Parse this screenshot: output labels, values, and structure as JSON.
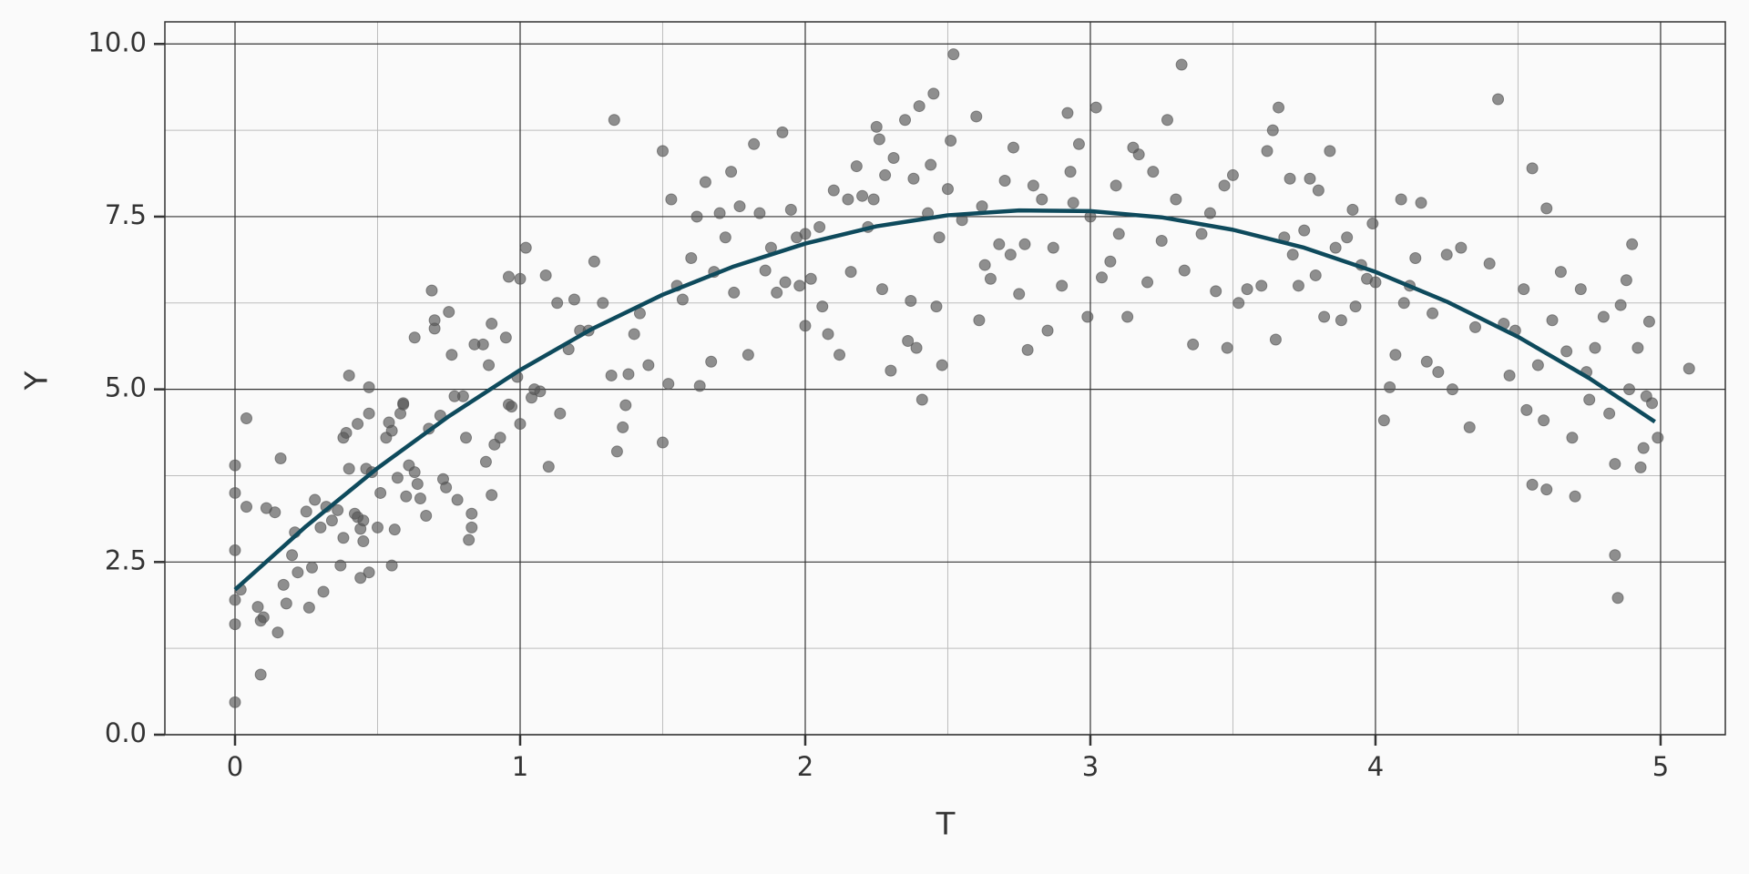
{
  "chart_data": {
    "type": "scatter",
    "xlabel": "T",
    "ylabel": "Y",
    "xlim": [
      -0.246,
      5.227
    ],
    "ylim": [
      0,
      10.32
    ],
    "xticks": [
      0,
      1,
      2,
      3,
      4,
      5
    ],
    "yticks": [
      {
        "value": 0,
        "label": "0.0"
      },
      {
        "value": 2.5,
        "label": "2.5"
      },
      {
        "value": 5,
        "label": "5.0"
      },
      {
        "value": 7.5,
        "label": "7.5"
      },
      {
        "value": 10,
        "label": "10.0"
      }
    ],
    "minor_xticks": [
      0.5,
      1.5,
      2.5,
      3.5,
      4.5
    ],
    "minor_yticks": [
      1.25,
      3.75,
      6.25,
      8.75
    ],
    "grid": true,
    "series": [
      {
        "type": "scatter",
        "color": "#555555",
        "alpha": 0.65,
        "x": [
          0,
          0,
          0,
          0,
          0,
          0,
          0.04,
          0.04,
          0.02,
          0.08,
          0.09,
          0.1,
          0.09,
          0.11,
          0.14,
          0.15,
          0.16,
          0.17,
          0.18,
          0.2,
          0.21,
          0.22,
          0.25,
          0.26,
          0.27,
          0.28,
          0.3,
          0.31,
          0.32,
          0.34,
          0.36,
          0.37,
          0.38,
          0.38,
          0.39,
          0.4,
          0.4,
          0.42,
          0.43,
          0.43,
          0.44,
          0.44,
          0.45,
          0.45,
          0.46,
          0.47,
          0.47,
          0.48,
          0.47,
          0.5,
          0.51,
          0.53,
          0.54,
          0.55,
          0.55,
          0.56,
          0.57,
          0.58,
          0.59,
          0.59,
          0.6,
          0.61,
          0.63,
          0.63,
          0.64,
          0.65,
          0.67,
          0.68,
          0.69,
          0.7,
          0.7,
          0.72,
          0.73,
          0.74,
          0.75,
          0.76,
          0.77,
          0.78,
          0.8,
          0.81,
          0.82,
          0.83,
          0.83,
          0.84,
          0.87,
          0.88,
          0.89,
          0.9,
          0.9,
          0.91,
          0.93,
          0.95,
          0.96,
          0.96,
          0.97,
          0.99,
          1.0,
          1.0,
          1.02,
          1.04,
          1.05,
          1.07,
          1.09,
          1.1,
          1.13,
          1.14,
          1.17,
          1.19,
          1.21,
          1.24,
          1.26,
          1.29,
          1.32,
          1.33,
          1.34,
          1.36,
          1.37,
          1.38,
          1.4,
          1.42,
          1.45,
          1.5,
          1.5,
          1.52,
          1.53,
          1.55,
          1.57,
          1.6,
          1.62,
          1.63,
          1.65,
          1.67,
          1.68,
          1.7,
          1.72,
          1.74,
          1.75,
          1.77,
          1.8,
          1.82,
          1.84,
          1.86,
          1.88,
          1.9,
          1.92,
          1.93,
          1.95,
          1.97,
          1.98,
          2.0,
          2.0,
          2.02,
          2.05,
          2.06,
          2.08,
          2.1,
          2.12,
          2.15,
          2.16,
          2.18,
          2.2,
          2.22,
          2.24,
          2.25,
          2.26,
          2.27,
          2.28,
          2.3,
          2.31,
          2.35,
          2.36,
          2.37,
          2.38,
          2.39,
          2.4,
          2.41,
          2.43,
          2.44,
          2.45,
          2.46,
          2.47,
          2.48,
          2.5,
          2.51,
          2.52,
          2.55,
          2.6,
          2.61,
          2.62,
          2.63,
          2.65,
          2.68,
          2.7,
          2.72,
          2.73,
          2.75,
          2.77,
          2.78,
          2.8,
          2.83,
          2.85,
          2.87,
          2.9,
          2.92,
          2.93,
          2.94,
          2.96,
          2.99,
          3.0,
          3.02,
          3.04,
          3.07,
          3.09,
          3.1,
          3.13,
          3.15,
          3.17,
          3.2,
          3.22,
          3.25,
          3.27,
          3.3,
          3.32,
          3.33,
          3.36,
          3.39,
          3.42,
          3.44,
          3.47,
          3.48,
          3.5,
          3.52,
          3.55,
          3.6,
          3.62,
          3.64,
          3.65,
          3.66,
          3.68,
          3.7,
          3.71,
          3.73,
          3.75,
          3.77,
          3.79,
          3.8,
          3.82,
          3.84,
          3.86,
          3.88,
          3.9,
          3.92,
          3.93,
          3.95,
          3.97,
          3.99,
          4.0,
          4.03,
          4.05,
          4.07,
          4.09,
          4.1,
          4.12,
          4.14,
          4.16,
          4.18,
          4.2,
          4.22,
          4.25,
          4.27,
          4.3,
          4.33,
          4.35,
          4.4,
          4.43,
          4.45,
          4.47,
          4.49,
          4.52,
          4.53,
          4.55,
          4.55,
          4.57,
          4.59,
          4.6,
          4.6,
          4.62,
          4.65,
          4.67,
          4.69,
          4.7,
          4.72,
          4.74,
          4.75,
          4.77,
          4.8,
          4.82,
          4.84,
          4.84,
          4.85,
          4.86,
          4.88,
          4.89,
          4.9,
          4.92,
          4.93,
          4.94,
          4.95,
          4.96,
          4.97,
          4.99,
          5.1
        ],
        "values": [
          3.9,
          3.5,
          2.67,
          1.95,
          1.6,
          0.47,
          4.58,
          3.3,
          2.1,
          1.85,
          1.65,
          1.7,
          0.87,
          3.28,
          3.22,
          1.48,
          4.0,
          2.17,
          1.9,
          2.6,
          2.93,
          2.35,
          3.23,
          1.84,
          2.42,
          3.4,
          3.0,
          2.07,
          3.3,
          3.1,
          3.25,
          2.45,
          2.85,
          4.3,
          4.37,
          3.85,
          5.2,
          3.2,
          4.5,
          3.15,
          2.98,
          2.27,
          2.8,
          3.1,
          3.85,
          5.03,
          4.65,
          3.8,
          2.35,
          3.0,
          3.5,
          4.3,
          4.52,
          2.45,
          4.4,
          2.97,
          3.72,
          4.65,
          4.8,
          4.78,
          3.45,
          3.9,
          5.75,
          3.8,
          3.63,
          3.42,
          3.17,
          4.43,
          6.43,
          6.0,
          5.88,
          4.62,
          3.7,
          3.58,
          6.12,
          5.5,
          4.9,
          3.4,
          4.9,
          4.3,
          2.82,
          3.0,
          3.2,
          5.65,
          5.65,
          3.95,
          5.35,
          5.95,
          3.47,
          4.2,
          4.3,
          5.75,
          6.63,
          4.78,
          4.75,
          5.18,
          6.6,
          4.5,
          7.05,
          4.88,
          5.0,
          4.97,
          6.65,
          3.88,
          6.25,
          4.65,
          5.58,
          6.3,
          5.85,
          5.85,
          6.85,
          6.25,
          5.2,
          8.9,
          4.1,
          4.45,
          4.77,
          5.22,
          5.8,
          6.1,
          5.35,
          4.23,
          8.45,
          5.08,
          7.75,
          6.5,
          6.3,
          6.9,
          7.5,
          5.05,
          8.0,
          5.4,
          6.7,
          7.55,
          7.2,
          8.15,
          6.4,
          7.65,
          5.5,
          8.55,
          7.55,
          6.72,
          7.05,
          6.4,
          8.72,
          6.55,
          7.6,
          7.2,
          6.5,
          7.25,
          5.92,
          6.6,
          7.35,
          6.2,
          5.8,
          7.88,
          5.5,
          7.75,
          6.7,
          8.23,
          7.8,
          7.35,
          7.75,
          8.8,
          8.62,
          6.45,
          8.1,
          5.27,
          8.35,
          8.9,
          5.7,
          6.28,
          8.05,
          5.6,
          9.1,
          4.85,
          7.55,
          8.25,
          9.28,
          6.2,
          7.2,
          5.35,
          7.9,
          8.6,
          9.85,
          7.45,
          8.95,
          6.0,
          7.65,
          6.8,
          6.6,
          7.1,
          8.02,
          6.95,
          8.5,
          6.38,
          7.1,
          5.57,
          7.95,
          7.75,
          5.85,
          7.05,
          6.5,
          9.0,
          8.15,
          7.7,
          8.55,
          6.05,
          7.5,
          9.08,
          6.62,
          6.85,
          7.95,
          7.25,
          6.05,
          8.5,
          8.4,
          6.55,
          8.15,
          7.15,
          8.9,
          7.75,
          9.7,
          6.72,
          5.65,
          7.25,
          7.55,
          6.42,
          7.95,
          5.6,
          8.1,
          6.25,
          6.45,
          6.5,
          8.45,
          8.75,
          5.72,
          9.08,
          7.2,
          8.05,
          6.95,
          6.5,
          7.3,
          8.05,
          6.65,
          7.88,
          6.05,
          8.45,
          7.05,
          6.0,
          7.2,
          7.6,
          6.2,
          6.8,
          6.6,
          7.4,
          6.55,
          4.55,
          5.03,
          5.5,
          7.75,
          6.25,
          6.5,
          6.9,
          7.7,
          5.4,
          6.1,
          5.25,
          6.95,
          5.0,
          7.05,
          4.45,
          5.9,
          6.82,
          9.2,
          5.95,
          5.2,
          5.85,
          6.45,
          4.7,
          8.2,
          3.62,
          5.35,
          4.55,
          7.62,
          3.55,
          6.0,
          6.7,
          5.55,
          4.3,
          3.45,
          6.45,
          5.25,
          4.85,
          5.6,
          6.05,
          4.65,
          2.6,
          3.92,
          1.98,
          6.22,
          6.58,
          5.0,
          7.1,
          5.6,
          3.87,
          4.15,
          4.9,
          5.98,
          4.8,
          4.3,
          5.3
        ]
      },
      {
        "type": "line",
        "color": "#0e4a5c",
        "x": [
          0,
          0.25,
          0.5,
          0.75,
          1.0,
          1.25,
          1.5,
          1.75,
          2.0,
          2.25,
          2.5,
          2.75,
          3.0,
          3.25,
          3.5,
          3.75,
          4.0,
          4.25,
          4.5,
          4.75,
          4.98
        ],
        "values": [
          2.1,
          3.02,
          3.86,
          4.61,
          5.28,
          5.87,
          6.37,
          6.78,
          7.11,
          7.36,
          7.52,
          7.59,
          7.58,
          7.49,
          7.31,
          7.05,
          6.7,
          6.27,
          5.76,
          5.16,
          4.53
        ]
      }
    ]
  }
}
